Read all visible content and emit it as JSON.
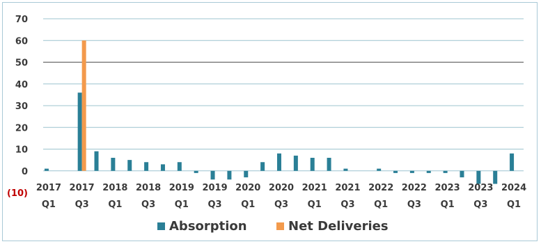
{
  "chart_data": {
    "type": "bar",
    "title": "",
    "xlabel": "",
    "ylabel": "",
    "ylim": [
      -10,
      70
    ],
    "yticks": [
      70,
      60,
      50,
      40,
      30,
      20,
      10,
      0,
      -10
    ],
    "ytick_labels": [
      "70",
      "60",
      "50",
      "40",
      "30",
      "20",
      "10",
      "0",
      "(10)"
    ],
    "categories": [
      "2017 Q1",
      "2017 Q2",
      "2017 Q3",
      "2017 Q4",
      "2018 Q1",
      "2018 Q2",
      "2018 Q3",
      "2018 Q4",
      "2019 Q1",
      "2019 Q2",
      "2019 Q3",
      "2019 Q4",
      "2020 Q1",
      "2020 Q2",
      "2020 Q3",
      "2020 Q4",
      "2021 Q1",
      "2021 Q2",
      "2021 Q3",
      "2021 Q4",
      "2022 Q1",
      "2022 Q2",
      "2022 Q3",
      "2022 Q4",
      "2023 Q1",
      "2023 Q2",
      "2023 Q3",
      "2023 Q4",
      "2024 Q1"
    ],
    "x_tick_labels": [
      {
        "year": "2017",
        "q": "Q1"
      },
      {
        "year": "2017",
        "q": "Q3"
      },
      {
        "year": "2018",
        "q": "Q1"
      },
      {
        "year": "2018",
        "q": "Q3"
      },
      {
        "year": "2019",
        "q": "Q1"
      },
      {
        "year": "2019",
        "q": "Q3"
      },
      {
        "year": "2020",
        "q": "Q1"
      },
      {
        "year": "2020",
        "q": "Q3"
      },
      {
        "year": "2021",
        "q": "Q1"
      },
      {
        "year": "2021",
        "q": "Q3"
      },
      {
        "year": "2022",
        "q": "Q1"
      },
      {
        "year": "2022",
        "q": "Q3"
      },
      {
        "year": "2023",
        "q": "Q1"
      },
      {
        "year": "2023",
        "q": "Q3"
      },
      {
        "year": "2024",
        "q": "Q1"
      }
    ],
    "series": [
      {
        "name": "Absorption",
        "color": "#2a7f96",
        "values": [
          1,
          0,
          36,
          9,
          6,
          5,
          4,
          3,
          4,
          -1,
          -4,
          -4,
          -3,
          4,
          8,
          7,
          6,
          6,
          1,
          0,
          1,
          -1,
          -1,
          -1,
          -1,
          -3,
          -6,
          -6,
          8
        ]
      },
      {
        "name": "Net Deliveries",
        "color": "#f39a4c",
        "values": [
          0,
          0,
          60,
          0,
          0,
          0,
          0,
          0,
          0,
          0,
          0,
          0,
          0,
          0,
          0,
          0,
          0,
          0,
          0,
          0,
          0,
          0,
          0,
          0,
          0,
          0,
          0,
          0,
          0
        ]
      }
    ],
    "grid": true,
    "legend": "bottom-center"
  }
}
